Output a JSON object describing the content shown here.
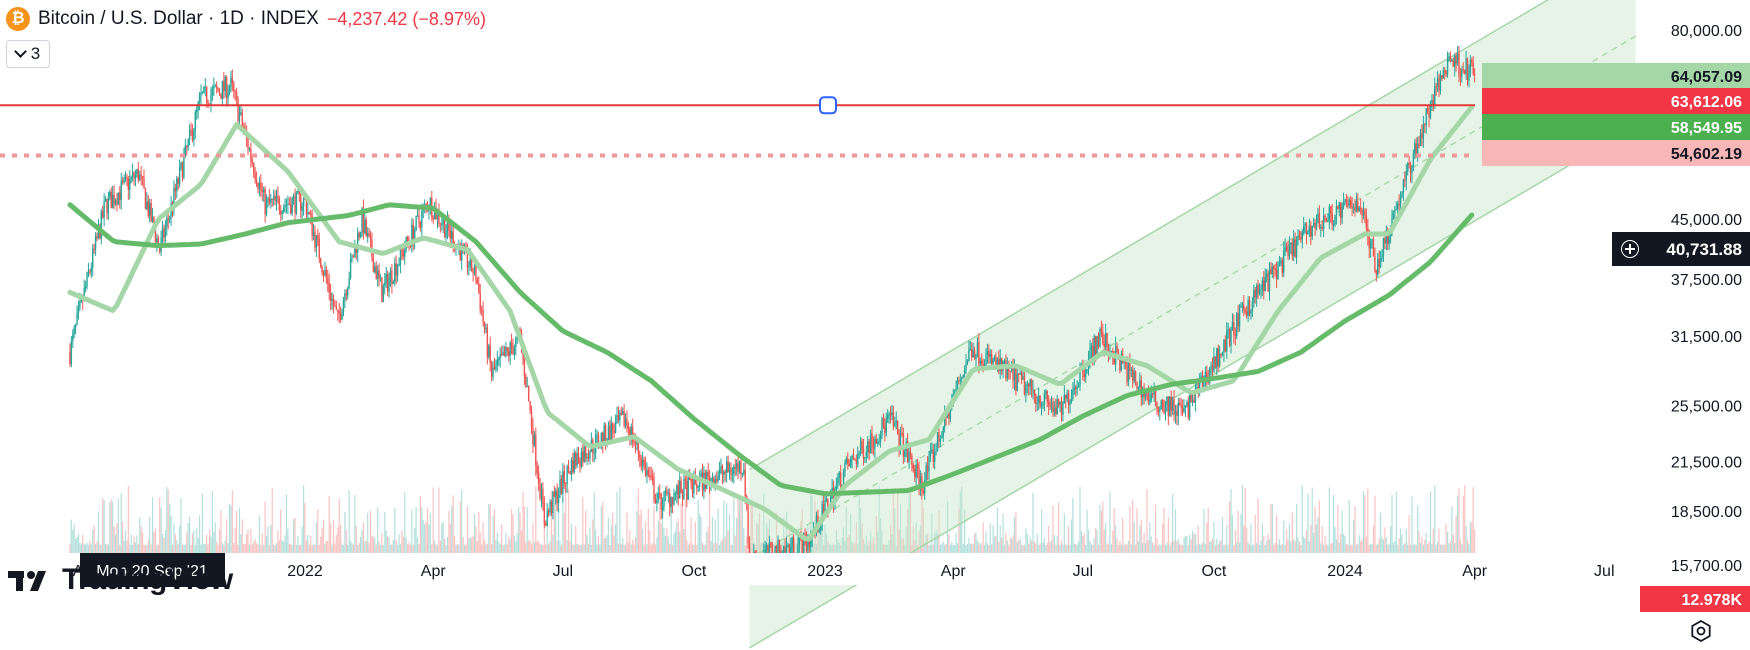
{
  "header": {
    "coin_symbol": "₿",
    "title": "Bitcoin / U.S. Dollar · 1D · INDEX",
    "change": "−4,237.42 (−8.97%)",
    "indicator_count": "3"
  },
  "logo_text": "TradingView",
  "colors": {
    "up": "#26a69a",
    "down": "#ef5350",
    "ma_fast": "#a5d6a7",
    "ma_slow": "#66bb6a",
    "channel_fill": "#c8e6c9",
    "level_line": "#e53935",
    "level_dotted": "#ef9a9a"
  },
  "chart_data": {
    "type": "candlestick",
    "y_scale": "log",
    "y_ticks": [
      "80,000.00",
      "45,000.00",
      "37,500.00",
      "31,500.00",
      "25,500.00",
      "21,500.00",
      "18,500.00",
      "15,700.00"
    ],
    "x_ticks": [
      "Aug",
      "2022",
      "Apr",
      "Jul",
      "Oct",
      "2023",
      "Apr",
      "Jul",
      "Oct",
      "2024",
      "Apr",
      "Jul"
    ],
    "crosshair_date_label": "Mon 20 Sep '21",
    "price_labels": [
      {
        "text": "64,057.09",
        "style": "ma-fast"
      },
      {
        "text": "63,612.06",
        "style": "level"
      },
      {
        "text": "58,549.95",
        "style": "ma-slow"
      },
      {
        "text": "54,602.19",
        "style": "last-price"
      }
    ],
    "crosshair_price_label": "40,731.88",
    "volume_label": "12.978K",
    "horizontal_levels": [
      {
        "price": 63612.06,
        "style": "solid"
      },
      {
        "price": 54602.19,
        "style": "dotted"
      }
    ],
    "price_path": [
      [
        "2021-07-20",
        30000
      ],
      [
        "2021-08-14",
        47000
      ],
      [
        "2021-09-06",
        51700
      ],
      [
        "2021-09-21",
        41000
      ],
      [
        "2021-10-20",
        65000
      ],
      [
        "2021-11-10",
        67500
      ],
      [
        "2021-12-04",
        47000
      ],
      [
        "2022-01-01",
        47500
      ],
      [
        "2022-01-24",
        33000
      ],
      [
        "2022-02-10",
        45000
      ],
      [
        "2022-02-24",
        36000
      ],
      [
        "2022-03-29",
        47500
      ],
      [
        "2022-05-01",
        38000
      ],
      [
        "2022-05-12",
        28000
      ],
      [
        "2022-06-01",
        31500
      ],
      [
        "2022-06-18",
        18000
      ],
      [
        "2022-07-08",
        21500
      ],
      [
        "2022-08-14",
        24500
      ],
      [
        "2022-09-06",
        19000
      ],
      [
        "2022-10-05",
        20200
      ],
      [
        "2022-11-05",
        21300
      ],
      [
        "2022-11-09",
        16000
      ],
      [
        "2022-12-20",
        16800
      ],
      [
        "2023-01-15",
        21000
      ],
      [
        "2023-02-16",
        24500
      ],
      [
        "2023-03-10",
        20000
      ],
      [
        "2023-04-14",
        30500
      ],
      [
        "2023-06-15",
        25000
      ],
      [
        "2023-07-13",
        31500
      ],
      [
        "2023-08-17",
        26000
      ],
      [
        "2023-09-11",
        25000
      ],
      [
        "2023-10-24",
        34500
      ],
      [
        "2023-12-08",
        44000
      ],
      [
        "2024-01-11",
        47500
      ],
      [
        "2024-01-23",
        39000
      ],
      [
        "2024-02-28",
        62000
      ],
      [
        "2024-03-14",
        73500
      ],
      [
        "2024-04-01",
        70000
      ],
      [
        "2024-05-01",
        57000
      ],
      [
        "2024-05-21",
        71500
      ],
      [
        "2024-06-07",
        71000
      ],
      [
        "2024-07-05",
        54602
      ]
    ],
    "ma_fast_path": [
      [
        "2021-07-20",
        36000
      ],
      [
        "2021-08-20",
        34000
      ],
      [
        "2021-09-20",
        45000
      ],
      [
        "2021-10-20",
        50000
      ],
      [
        "2021-11-14",
        60000
      ],
      [
        "2021-12-20",
        52000
      ],
      [
        "2022-01-25",
        42000
      ],
      [
        "2022-02-25",
        40500
      ],
      [
        "2022-03-25",
        42500
      ],
      [
        "2022-04-25",
        41000
      ],
      [
        "2022-05-25",
        34000
      ],
      [
        "2022-06-20",
        25000
      ],
      [
        "2022-07-20",
        22500
      ],
      [
        "2022-08-20",
        23200
      ],
      [
        "2022-09-20",
        21000
      ],
      [
        "2022-10-20",
        19800
      ],
      [
        "2022-11-20",
        18600
      ],
      [
        "2022-12-20",
        16900
      ],
      [
        "2023-01-15",
        20000
      ],
      [
        "2023-02-15",
        22200
      ],
      [
        "2023-03-15",
        23000
      ],
      [
        "2023-04-15",
        28500
      ],
      [
        "2023-05-15",
        28800
      ],
      [
        "2023-06-15",
        27200
      ],
      [
        "2023-07-15",
        30000
      ],
      [
        "2023-08-15",
        28800
      ],
      [
        "2023-09-15",
        26500
      ],
      [
        "2023-10-15",
        27500
      ],
      [
        "2023-11-15",
        34000
      ],
      [
        "2023-12-15",
        40000
      ],
      [
        "2024-01-15",
        43000
      ],
      [
        "2024-02-01",
        43000
      ],
      [
        "2024-03-01",
        54000
      ],
      [
        "2024-04-01",
        64000
      ],
      [
        "2024-05-01",
        65000
      ],
      [
        "2024-06-01",
        64000
      ],
      [
        "2024-06-20",
        66000
      ],
      [
        "2024-07-05",
        64057
      ]
    ],
    "ma_slow_path": [
      [
        "2021-07-20",
        47000
      ],
      [
        "2021-08-20",
        42000
      ],
      [
        "2021-09-20",
        41500
      ],
      [
        "2021-10-20",
        41700
      ],
      [
        "2021-11-20",
        43000
      ],
      [
        "2021-12-20",
        44500
      ],
      [
        "2022-02-01",
        45500
      ],
      [
        "2022-03-01",
        47000
      ],
      [
        "2022-04-01",
        46500
      ],
      [
        "2022-05-01",
        42000
      ],
      [
        "2022-06-01",
        36000
      ],
      [
        "2022-07-01",
        32000
      ],
      [
        "2022-08-01",
        30000
      ],
      [
        "2022-09-01",
        27500
      ],
      [
        "2022-10-01",
        24500
      ],
      [
        "2022-11-01",
        22000
      ],
      [
        "2022-12-01",
        20000
      ],
      [
        "2023-01-01",
        19500
      ],
      [
        "2023-02-01",
        19600
      ],
      [
        "2023-03-01",
        19700
      ],
      [
        "2023-04-01",
        20700
      ],
      [
        "2023-05-01",
        21800
      ],
      [
        "2023-06-01",
        23000
      ],
      [
        "2023-07-01",
        24700
      ],
      [
        "2023-08-01",
        26300
      ],
      [
        "2023-09-01",
        27200
      ],
      [
        "2023-10-01",
        27700
      ],
      [
        "2023-11-01",
        28300
      ],
      [
        "2023-12-01",
        30000
      ],
      [
        "2024-01-01",
        33000
      ],
      [
        "2024-02-01",
        35700
      ],
      [
        "2024-03-01",
        39500
      ],
      [
        "2024-04-01",
        46000
      ],
      [
        "2024-05-01",
        51000
      ],
      [
        "2024-06-01",
        55000
      ],
      [
        "2024-07-05",
        58550
      ]
    ],
    "channel": {
      "mid": [
        [
          "2022-11-09",
          16000
        ],
        [
          "2024-07-05",
          75000
        ]
      ],
      "upper": [
        [
          "2022-11-09",
          21000
        ],
        [
          "2024-07-05",
          98000
        ]
      ],
      "lower": [
        [
          "2022-11-09",
          12200
        ],
        [
          "2024-07-05",
          57000
        ]
      ]
    }
  }
}
